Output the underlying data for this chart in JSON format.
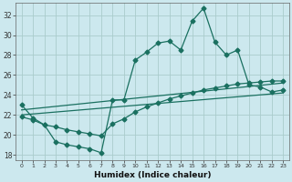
{
  "xlabel": "Humidex (Indice chaleur)",
  "bg_color": "#cce8ee",
  "grid_color": "#aacccc",
  "line_color": "#1a7060",
  "xlim": [
    -0.5,
    23.5
  ],
  "ylim": [
    17.5,
    33.2
  ],
  "yticks": [
    18,
    20,
    22,
    24,
    26,
    28,
    30,
    32
  ],
  "xticks": [
    0,
    1,
    2,
    3,
    4,
    5,
    6,
    7,
    8,
    9,
    10,
    11,
    12,
    13,
    14,
    15,
    16,
    17,
    18,
    19,
    20,
    21,
    22,
    23
  ],
  "line1_x": [
    0,
    1,
    2,
    3,
    4,
    5,
    6,
    7,
    8,
    9,
    10,
    11,
    12,
    13,
    14,
    15,
    16,
    17,
    18,
    19,
    20,
    21,
    22,
    23
  ],
  "line1_y": [
    23.0,
    21.7,
    21.0,
    19.3,
    19.0,
    18.8,
    18.6,
    18.2,
    23.5,
    23.5,
    27.5,
    28.3,
    29.2,
    29.4,
    28.5,
    31.4,
    32.7,
    29.3,
    28.0,
    28.5,
    25.0,
    24.8,
    24.3,
    24.5
  ],
  "line2_x": [
    0,
    1,
    2,
    3,
    4,
    5,
    6,
    7,
    8,
    9,
    10,
    11,
    12,
    13,
    14,
    15,
    16,
    17,
    18,
    19,
    20,
    21,
    22,
    23
  ],
  "line2_y": [
    21.8,
    21.5,
    21.0,
    20.8,
    20.5,
    20.3,
    20.1,
    19.9,
    21.1,
    21.6,
    22.3,
    22.8,
    23.2,
    23.6,
    23.9,
    24.2,
    24.5,
    24.7,
    24.9,
    25.1,
    25.2,
    25.3,
    25.4,
    25.4
  ],
  "line3_x": [
    0,
    23
  ],
  "line3_y": [
    22.5,
    25.2
  ],
  "line4_x": [
    0,
    23
  ],
  "line4_y": [
    22.0,
    24.2
  ]
}
